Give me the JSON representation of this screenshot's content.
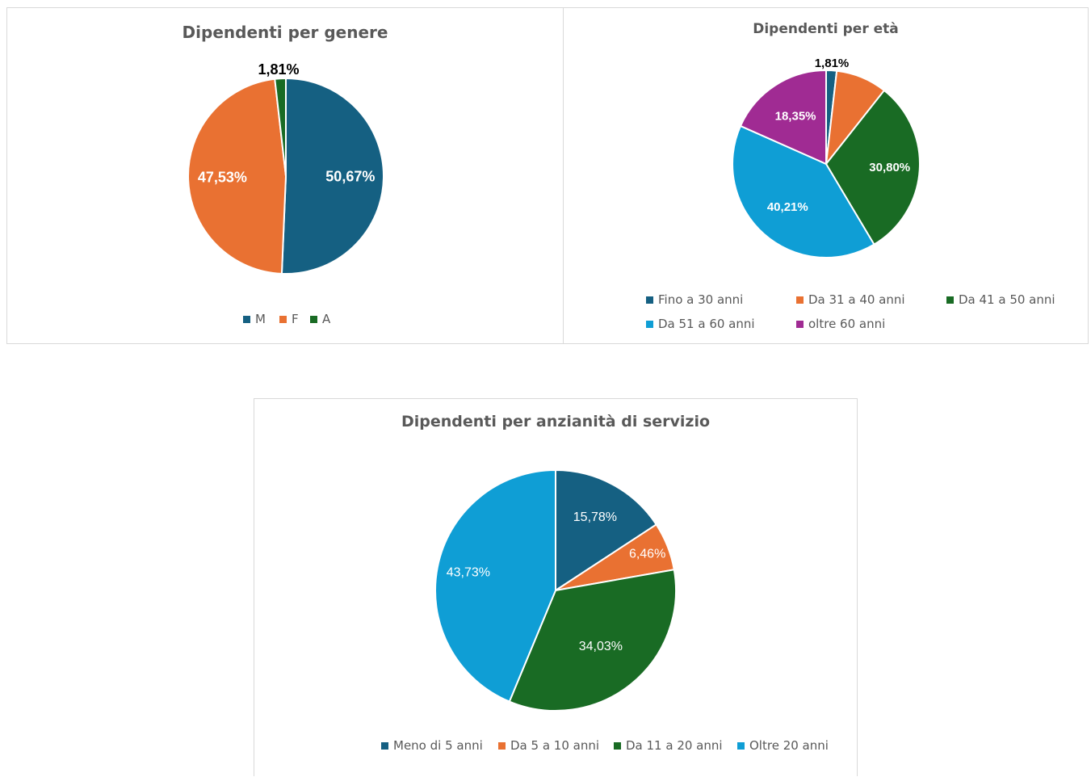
{
  "chart_data": [
    {
      "id": "gender",
      "type": "pie",
      "title": "Dipendenti per genere",
      "categories": [
        "M",
        "F",
        "A"
      ],
      "values": [
        50.67,
        47.53,
        1.81
      ],
      "labels": [
        "50,67%",
        "47,53%",
        "1,81%"
      ],
      "colors": [
        "#156082",
        "#E97132",
        "#196B24"
      ],
      "legend": "bottom"
    },
    {
      "id": "age",
      "type": "pie",
      "title": "Dipendenti per età",
      "categories": [
        "Fino a 30 anni",
        "Da 31 a 40 anni",
        "Da 41 a 50 anni",
        "Da 51 a 60 anni",
        "oltre 60 anni"
      ],
      "values": [
        1.81,
        8.83,
        30.8,
        40.21,
        18.35
      ],
      "labels": [
        "1,81%",
        "",
        "30,80%",
        "40,21%",
        "18,35%"
      ],
      "colors": [
        "#156082",
        "#E97132",
        "#196B24",
        "#0F9ED5",
        "#A02B93"
      ],
      "legend": "bottom"
    },
    {
      "id": "seniority",
      "type": "pie",
      "title": "Dipendenti per anzianità di servizio",
      "categories": [
        "Meno di 5 anni",
        "Da 5 a 10 anni",
        "Da 11 a 20 anni",
        "Oltre 20 anni"
      ],
      "values": [
        15.78,
        6.46,
        34.03,
        43.73
      ],
      "labels": [
        "15,78%",
        "6,46%",
        "34,03%",
        "43,73%"
      ],
      "colors": [
        "#156082",
        "#E97132",
        "#196B24",
        "#0F9ED5"
      ],
      "legend": "bottom"
    }
  ]
}
